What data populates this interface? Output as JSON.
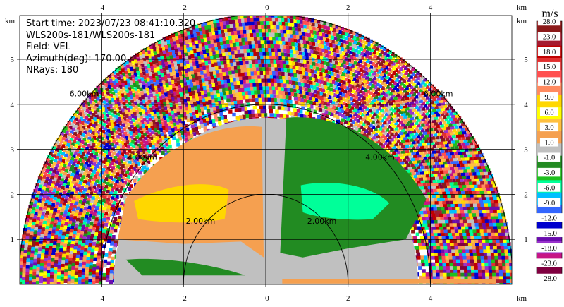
{
  "info_lines": [
    "Start time: 2023/07/23 08:41:10.320",
    "WLS200s-181/WLS200s-181",
    "Field: VEL",
    "Azimuth(deg): 170.00",
    "NRays: 180"
  ],
  "chart_data": {
    "type": "heatmap",
    "subtype": "radar-ppi-half-disc",
    "field": "VEL",
    "x_unit_label": "km",
    "y_unit_label": "km",
    "xlim": [
      -6,
      6
    ],
    "ylim": [
      0,
      6
    ],
    "x_ticks": [
      -4,
      -2,
      0,
      2,
      4
    ],
    "x_tick_labels": [
      "-4",
      "-2",
      "-0",
      "2",
      "4"
    ],
    "y_ticks": [
      1,
      2,
      3,
      4,
      5
    ],
    "y_tick_labels": [
      "1",
      "2",
      "3",
      "4",
      "5"
    ],
    "grid": true,
    "max_range_km": 6,
    "range_rings_km": [
      2,
      4,
      6
    ],
    "range_ring_labels": [
      "2.00km",
      "4.00km",
      "6.00km"
    ],
    "colorbar": {
      "unit": "m/s",
      "tick_labels": [
        "28.0",
        "23.0",
        "18.0",
        "15.0",
        "12.0",
        "9.0",
        "6.0",
        "3.0",
        "1.0",
        "-1.0",
        "-3.0",
        "-6.0",
        "-9.0",
        "-12.0",
        "-15.0",
        "-18.0",
        "-23.0",
        "-28.0"
      ],
      "colors": [
        "#8b1a1a",
        "#a51c30",
        "#c00000",
        "#e03030",
        "#ff5050",
        "#ff8a60",
        "#ffd700",
        "#ffff00",
        "#ffc040",
        "#f5a050",
        "#c0c0c0",
        "#228b22",
        "#1fc01f",
        "#00ff99",
        "#00bfff",
        "#3366ff",
        "#0000cd",
        "#6a0dad",
        "#9932cc",
        "#c71585",
        "#800040"
      ]
    },
    "regions": [
      {
        "name": "near-zero",
        "value_range": [
          -1.0,
          1.0
        ],
        "color": "#c0c0c0",
        "area": "base band and center"
      },
      {
        "name": "approaching-left",
        "value_range": [
          1.0,
          9.0
        ],
        "color": "#f5a050",
        "area": "left sector up to 3.5 km"
      },
      {
        "name": "core-left",
        "value_range": [
          6.0,
          9.0
        ],
        "color": "#ffd700",
        "area": "left core ~2 km"
      },
      {
        "name": "receding-right",
        "value_range": [
          -6.0,
          -1.0
        ],
        "color": "#228b22",
        "area": "right sector up to 3.5 km"
      },
      {
        "name": "core-right",
        "value_range": [
          -9.0,
          -6.0
        ],
        "color": "#00ff99",
        "area": "right core ~2 km"
      },
      {
        "name": "noise",
        "value_range": [
          -28.0,
          28.0
        ],
        "color": "mixed",
        "area": "outer range beyond ~4 km"
      }
    ]
  }
}
